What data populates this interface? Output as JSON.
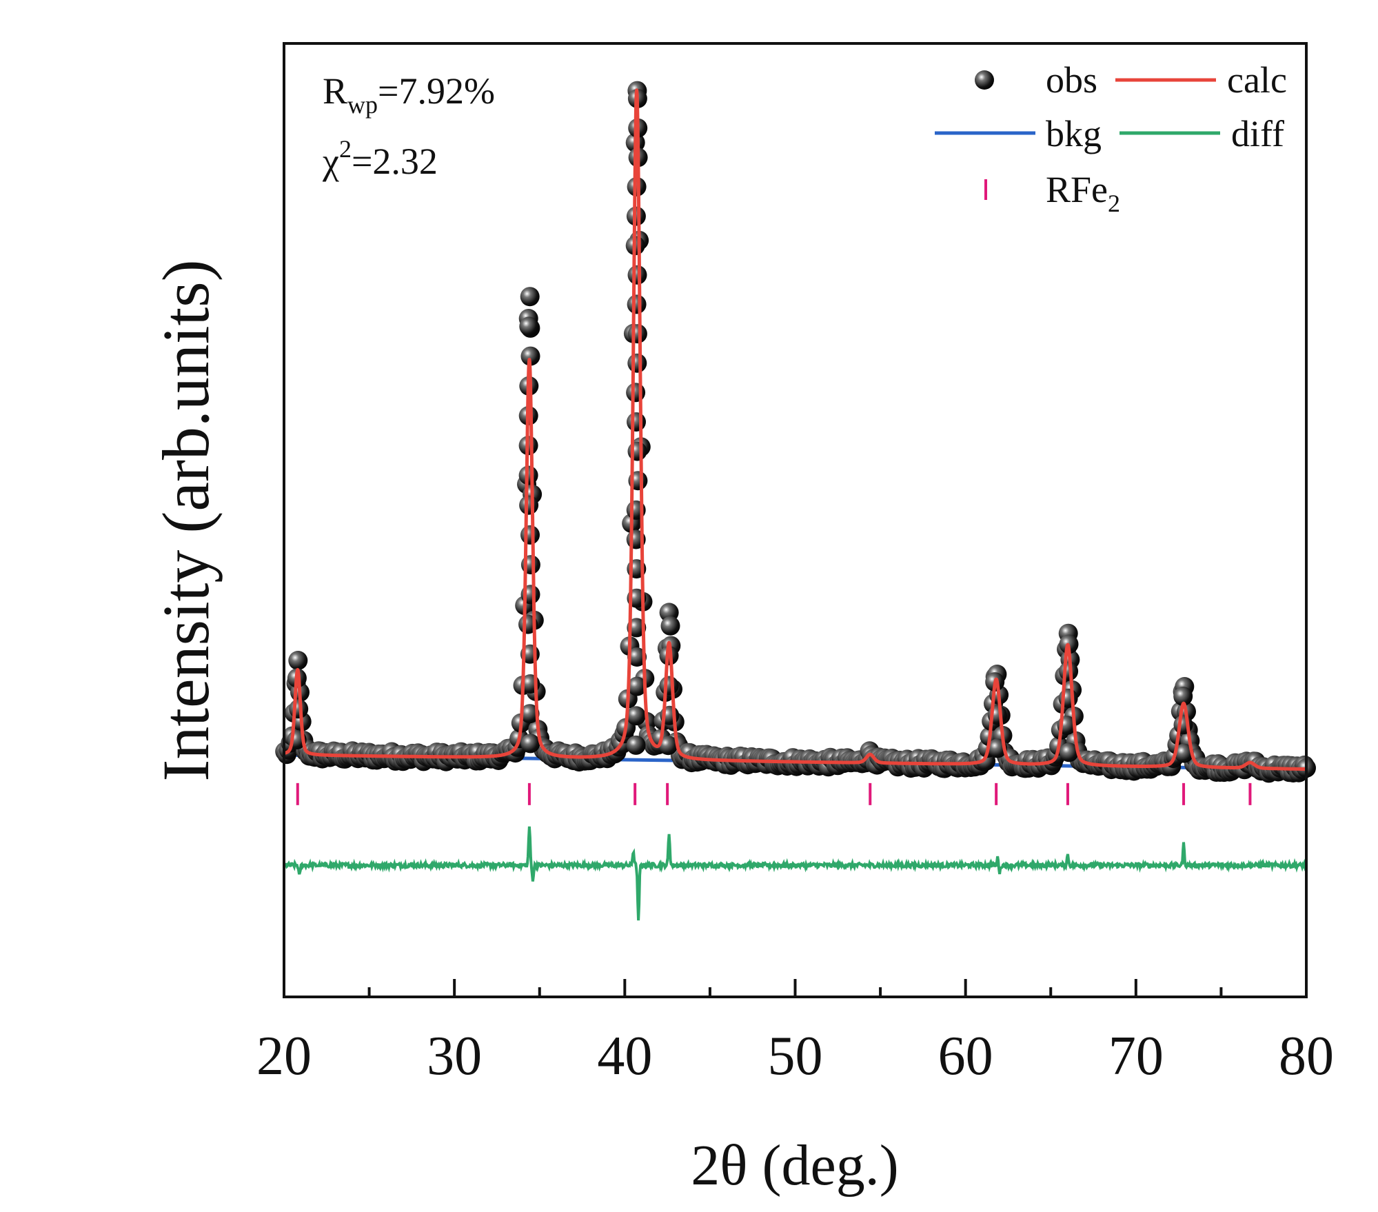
{
  "chart_data": {
    "type": "scatter",
    "title": "",
    "xlabel": "2θ (deg.)",
    "ylabel": "Intensity (arb.units)",
    "xlim": [
      20,
      80
    ],
    "xticks": [
      "20",
      "30",
      "40",
      "50",
      "60",
      "70",
      "80"
    ],
    "ylim": [
      -0.34,
      1.0
    ],
    "y_ticks_shown": false,
    "grid": false,
    "legend_position": "top-right",
    "annotations": {
      "rwp_main": "R",
      "rwp_sub": "wp",
      "rwp_value": "=7.92%",
      "chi_main": "χ",
      "chi_sup": "2",
      "chi_value": "=2.32"
    },
    "legend": [
      {
        "key": "obs",
        "label": "obs",
        "marker": "sphere",
        "color": "#111111"
      },
      {
        "key": "calc",
        "label": "calc",
        "marker": "line",
        "color": "#e8443a"
      },
      {
        "key": "bkg",
        "label": "bkg",
        "marker": "line",
        "color": "#2a64c8"
      },
      {
        "key": "diff",
        "label": "diff",
        "marker": "line",
        "color": "#2fa86a"
      },
      {
        "key": "rfe2",
        "label_main": "RFe",
        "label_sub": "2",
        "marker": "tick",
        "color": "#e0197a"
      }
    ],
    "background": {
      "x": [
        20,
        80
      ],
      "y": [
        0.0,
        -0.02
      ]
    },
    "peaks": [
      {
        "position": 20.8,
        "height": 0.12,
        "observed_max": 0.13
      },
      {
        "position": 34.4,
        "height": 0.56,
        "observed_max": 0.67
      },
      {
        "position": 40.7,
        "height": 0.94,
        "observed_max": 0.95
      },
      {
        "position": 42.6,
        "height": 0.16,
        "observed_max": 0.21
      },
      {
        "position": 54.4,
        "height": 0.012,
        "observed_max": 0.012
      },
      {
        "position": 61.8,
        "height": 0.12,
        "observed_max": 0.14
      },
      {
        "position": 66.0,
        "height": 0.17,
        "observed_max": 0.19
      },
      {
        "position": 72.8,
        "height": 0.09,
        "observed_max": 0.12
      },
      {
        "position": 76.7,
        "height": 0.008,
        "observed_max": 0.008
      }
    ],
    "reflection_positions": [
      20.8,
      34.4,
      40.6,
      42.5,
      54.4,
      61.8,
      66.0,
      72.8,
      76.7
    ],
    "reflection_y": -0.055,
    "diff_offset": -0.155,
    "diff_features": [
      {
        "x": 20.9,
        "dy": -0.015
      },
      {
        "x": 34.4,
        "dy": 0.055
      },
      {
        "x": 34.6,
        "dy": -0.02
      },
      {
        "x": 40.5,
        "dy": 0.02
      },
      {
        "x": 40.8,
        "dy": -0.08
      },
      {
        "x": 42.6,
        "dy": 0.045
      },
      {
        "x": 61.9,
        "dy": 0.012
      },
      {
        "x": 62.0,
        "dy": -0.012
      },
      {
        "x": 66.0,
        "dy": 0.015
      },
      {
        "x": 72.8,
        "dy": 0.03
      }
    ],
    "series": [
      {
        "name": "obs",
        "values_note": "observed intensity, background + peaks + noise"
      },
      {
        "name": "calc",
        "values_note": "calculated profile, background + peaks"
      },
      {
        "name": "bkg",
        "values_note": "linear background"
      },
      {
        "name": "diff",
        "values_note": "obs - calc, offset"
      }
    ]
  }
}
